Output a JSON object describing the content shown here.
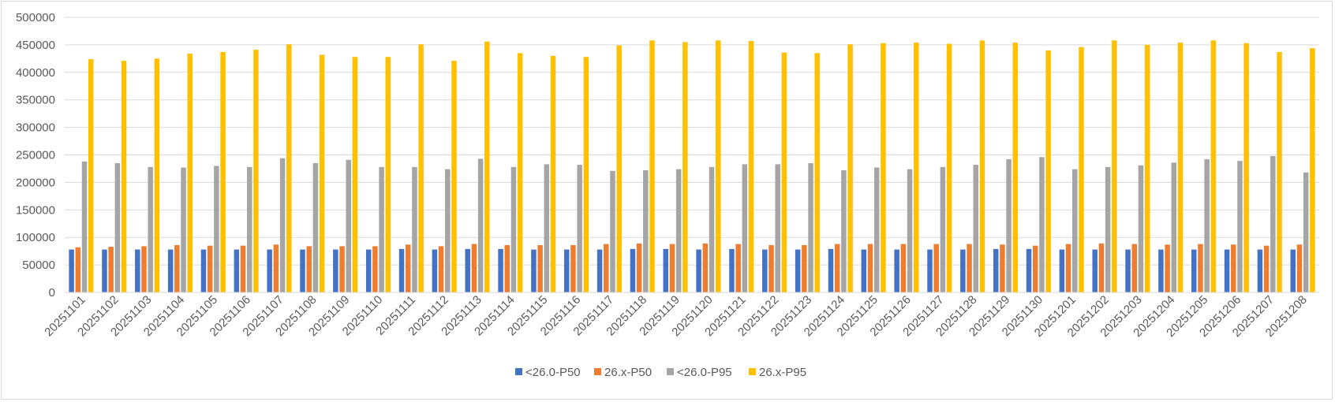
{
  "chart_data": {
    "type": "bar",
    "title": "",
    "xlabel": "",
    "ylabel": "",
    "ylim": [
      0,
      500000
    ],
    "yticks": [
      0,
      50000,
      100000,
      150000,
      200000,
      250000,
      300000,
      350000,
      400000,
      450000,
      500000
    ],
    "ytick_labels": [
      "0",
      "50000",
      "100000",
      "150000",
      "200000",
      "250000",
      "300000",
      "350000",
      "400000",
      "450000",
      "500000"
    ],
    "grid": true,
    "legend_position": "bottom",
    "categories": [
      "20251101",
      "20251102",
      "20251103",
      "20251104",
      "20251105",
      "20251106",
      "20251107",
      "20251108",
      "20251109",
      "20251110",
      "20251111",
      "20251112",
      "20251113",
      "20251114",
      "20251115",
      "20251116",
      "20251117",
      "20251118",
      "20251119",
      "20251120",
      "20251121",
      "20251122",
      "20251123",
      "20251124",
      "20251125",
      "20251126",
      "20251127",
      "20251128",
      "20251129",
      "20251130",
      "20251201",
      "20251202",
      "20251203",
      "20251204",
      "20251205",
      "20251206",
      "20251207",
      "20251208"
    ],
    "series": [
      {
        "name": "<26.0-P50",
        "color": "#4472c4",
        "values": [
          78000,
          78000,
          78000,
          78000,
          78000,
          78000,
          78000,
          78000,
          78000,
          78000,
          79000,
          78000,
          79000,
          79000,
          78000,
          78000,
          78000,
          79000,
          79000,
          78000,
          79000,
          78000,
          78000,
          79000,
          78000,
          78000,
          78000,
          78000,
          79000,
          79000,
          78000,
          78000,
          78000,
          78000,
          78000,
          78000,
          78000,
          78000
        ]
      },
      {
        "name": "26.x-P50",
        "color": "#ed7d31",
        "values": [
          82000,
          83000,
          84000,
          86000,
          85000,
          85000,
          87000,
          84000,
          84000,
          84000,
          87000,
          84000,
          88000,
          86000,
          86000,
          86000,
          88000,
          89000,
          88000,
          89000,
          88000,
          86000,
          86000,
          88000,
          88000,
          88000,
          88000,
          88000,
          87000,
          85000,
          88000,
          89000,
          88000,
          87000,
          88000,
          87000,
          85000,
          87000
        ]
      },
      {
        "name": "<26.0-P95",
        "color": "#a5a5a5",
        "values": [
          238000,
          235000,
          228000,
          227000,
          230000,
          228000,
          244000,
          235000,
          241000,
          228000,
          228000,
          224000,
          243000,
          228000,
          233000,
          232000,
          221000,
          222000,
          224000,
          228000,
          233000,
          233000,
          235000,
          222000,
          227000,
          224000,
          228000,
          232000,
          242000,
          246000,
          224000,
          228000,
          231000,
          236000,
          242000,
          239000,
          248000,
          218000
        ]
      },
      {
        "name": "26.x-P95",
        "color": "#ffc000",
        "values": [
          424000,
          421000,
          425000,
          434000,
          437000,
          441000,
          451000,
          432000,
          428000,
          428000,
          451000,
          421000,
          456000,
          435000,
          430000,
          428000,
          449000,
          458000,
          455000,
          458000,
          457000,
          436000,
          435000,
          451000,
          453000,
          454000,
          452000,
          458000,
          454000,
          440000,
          446000,
          458000,
          450000,
          454000,
          458000,
          453000,
          437000,
          444000
        ]
      }
    ]
  }
}
